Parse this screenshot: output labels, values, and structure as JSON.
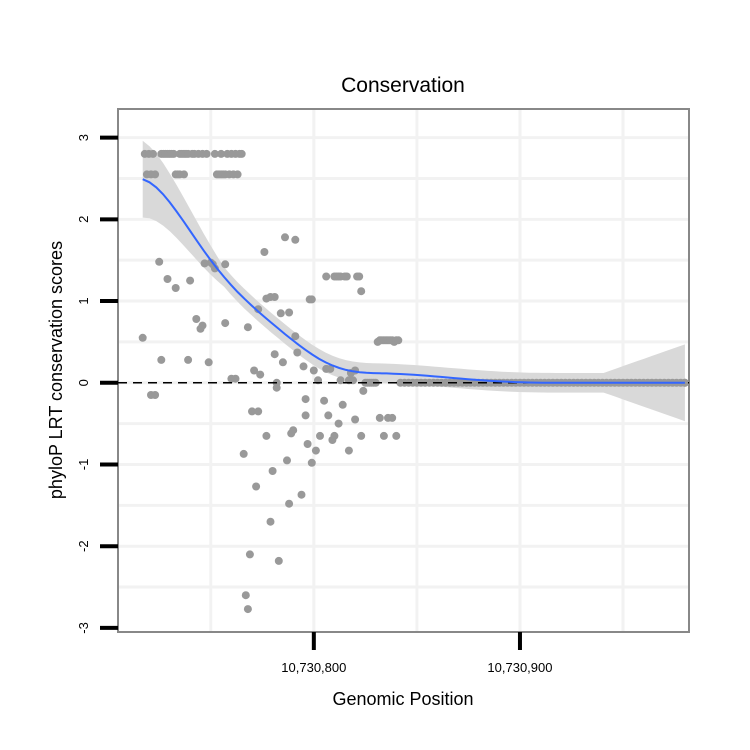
{
  "chart_data": {
    "type": "scatter",
    "title": "Conservation",
    "xlabel": "Genomic Position",
    "ylabel": "phyloP LRT conservation scores",
    "xlim": [
      10730705,
      10730982
    ],
    "ylim": [
      -3.05,
      3.35
    ],
    "x_ticks": [
      {
        "value": 10730800,
        "label": "10,730,800"
      },
      {
        "value": 10730900,
        "label": "10,730,900"
      }
    ],
    "y_ticks": [
      {
        "value": 3,
        "label": "3"
      },
      {
        "value": 2,
        "label": "2"
      },
      {
        "value": 1,
        "label": "1"
      },
      {
        "value": 0,
        "label": "0"
      },
      {
        "value": -1,
        "label": "-1"
      },
      {
        "value": -2,
        "label": "-2"
      },
      {
        "value": -3,
        "label": "-3"
      }
    ],
    "reference_line": {
      "y": 0,
      "style": "dashed"
    },
    "grid": true,
    "colors": {
      "points": "#999999",
      "smooth": "#3366ff",
      "band": "#d9d9d9",
      "frame": "#888888"
    },
    "points": [
      [
        10730717,
        0.55
      ],
      [
        10730718,
        2.8
      ],
      [
        10730719,
        2.55
      ],
      [
        10730720,
        2.8
      ],
      [
        10730721,
        2.55
      ],
      [
        10730722,
        2.8
      ],
      [
        10730723,
        2.55
      ],
      [
        10730721,
        -0.15
      ],
      [
        10730723,
        -0.15
      ],
      [
        10730725,
        1.48
      ],
      [
        10730726,
        0.28
      ],
      [
        10730726,
        2.8
      ],
      [
        10730727,
        2.8
      ],
      [
        10730728,
        2.8
      ],
      [
        10730729,
        1.27
      ],
      [
        10730729,
        2.8
      ],
      [
        10730730,
        2.8
      ],
      [
        10730731,
        2.8
      ],
      [
        10730732,
        2.8
      ],
      [
        10730733,
        1.16
      ],
      [
        10730733,
        2.55
      ],
      [
        10730734,
        2.55
      ],
      [
        10730735,
        2.55
      ],
      [
        10730735,
        2.8
      ],
      [
        10730736,
        2.8
      ],
      [
        10730737,
        2.55
      ],
      [
        10730737,
        2.8
      ],
      [
        10730738,
        2.8
      ],
      [
        10730739,
        2.8
      ],
      [
        10730739,
        0.28
      ],
      [
        10730740,
        1.25
      ],
      [
        10730741,
        2.8
      ],
      [
        10730742,
        2.8
      ],
      [
        10730743,
        0.78
      ],
      [
        10730744,
        2.8
      ],
      [
        10730745,
        0.66
      ],
      [
        10730746,
        2.8
      ],
      [
        10730746,
        0.7
      ],
      [
        10730747,
        1.46
      ],
      [
        10730748,
        2.8
      ],
      [
        10730749,
        0.25
      ],
      [
        10730750,
        1.47
      ],
      [
        10730751,
        1.45
      ],
      [
        10730752,
        2.8
      ],
      [
        10730752,
        1.4
      ],
      [
        10730753,
        2.55
      ],
      [
        10730754,
        2.55
      ],
      [
        10730755,
        2.8
      ],
      [
        10730755,
        2.55
      ],
      [
        10730756,
        2.55
      ],
      [
        10730757,
        2.55
      ],
      [
        10730757,
        1.45
      ],
      [
        10730757,
        0.73
      ],
      [
        10730758,
        2.8
      ],
      [
        10730759,
        2.55
      ],
      [
        10730760,
        0.05
      ],
      [
        10730760,
        2.8
      ],
      [
        10730761,
        2.55
      ],
      [
        10730762,
        2.8
      ],
      [
        10730762,
        0.05
      ],
      [
        10730763,
        2.55
      ],
      [
        10730764,
        2.8
      ],
      [
        10730765,
        2.8
      ],
      [
        10730766,
        -0.87
      ],
      [
        10730767,
        -2.6
      ],
      [
        10730768,
        -2.77
      ],
      [
        10730768,
        0.68
      ],
      [
        10730769,
        -2.1
      ],
      [
        10730770,
        -0.35
      ],
      [
        10730771,
        0.15
      ],
      [
        10730772,
        -1.27
      ],
      [
        10730773,
        -0.35
      ],
      [
        10730773,
        0.9
      ],
      [
        10730774,
        0.1
      ],
      [
        10730776,
        1.6
      ],
      [
        10730777,
        -0.65
      ],
      [
        10730777,
        1.03
      ],
      [
        10730779,
        -1.7
      ],
      [
        10730779,
        1.05
      ],
      [
        10730780,
        -1.08
      ],
      [
        10730781,
        0.35
      ],
      [
        10730781,
        1.05
      ],
      [
        10730782,
        0.0
      ],
      [
        10730782,
        -0.06
      ],
      [
        10730783,
        -2.18
      ],
      [
        10730784,
        0.85
      ],
      [
        10730785,
        0.25
      ],
      [
        10730786,
        1.78
      ],
      [
        10730787,
        -0.95
      ],
      [
        10730788,
        -1.48
      ],
      [
        10730788,
        0.86
      ],
      [
        10730789,
        -0.62
      ],
      [
        10730790,
        -0.58
      ],
      [
        10730791,
        1.75
      ],
      [
        10730791,
        0.57
      ],
      [
        10730792,
        0.37
      ],
      [
        10730794,
        -1.37
      ],
      [
        10730795,
        0.2
      ],
      [
        10730796,
        -0.2
      ],
      [
        10730796,
        -0.4
      ],
      [
        10730797,
        -0.75
      ],
      [
        10730798,
        1.02
      ],
      [
        10730799,
        1.02
      ],
      [
        10730799,
        -0.98
      ],
      [
        10730800,
        0.15
      ],
      [
        10730801,
        -0.83
      ],
      [
        10730802,
        0.03
      ],
      [
        10730803,
        -0.65
      ],
      [
        10730805,
        -0.22
      ],
      [
        10730806,
        1.3
      ],
      [
        10730806,
        0.17
      ],
      [
        10730807,
        -0.4
      ],
      [
        10730808,
        0.17
      ],
      [
        10730809,
        -0.7
      ],
      [
        10730810,
        1.3
      ],
      [
        10730810,
        -0.65
      ],
      [
        10730811,
        1.3
      ],
      [
        10730812,
        1.3
      ],
      [
        10730812,
        -0.5
      ],
      [
        10730813,
        1.3
      ],
      [
        10730813,
        0.03
      ],
      [
        10730814,
        -0.27
      ],
      [
        10730815,
        1.3
      ],
      [
        10730816,
        1.3
      ],
      [
        10730817,
        0.03
      ],
      [
        10730817,
        -0.83
      ],
      [
        10730818,
        0.12
      ],
      [
        10730819,
        0.03
      ],
      [
        10730820,
        0.15
      ],
      [
        10730820,
        -0.45
      ],
      [
        10730821,
        1.3
      ],
      [
        10730822,
        1.3
      ],
      [
        10730823,
        1.12
      ],
      [
        10730823,
        -0.65
      ],
      [
        10730824,
        -0.1
      ],
      [
        10730825,
        0.0
      ],
      [
        10730826,
        0.0
      ],
      [
        10730827,
        0.0
      ],
      [
        10730828,
        0.0
      ],
      [
        10730829,
        0.0
      ],
      [
        10730830,
        0.0
      ],
      [
        10730831,
        0.5
      ],
      [
        10730832,
        0.52
      ],
      [
        10730832,
        -0.43
      ],
      [
        10730833,
        0.52
      ],
      [
        10730834,
        0.52
      ],
      [
        10730834,
        -0.65
      ],
      [
        10730835,
        0.52
      ],
      [
        10730836,
        0.52
      ],
      [
        10730836,
        -0.43
      ],
      [
        10730837,
        0.52
      ],
      [
        10730838,
        0.52
      ],
      [
        10730838,
        -0.43
      ],
      [
        10730839,
        0.5
      ],
      [
        10730840,
        0.52
      ],
      [
        10730840,
        -0.65
      ],
      [
        10730841,
        0.52
      ],
      [
        10730842,
        0.0
      ],
      [
        10730844,
        0.0
      ],
      [
        10730846,
        0.0
      ],
      [
        10730848,
        0.0
      ],
      [
        10730850,
        0.0
      ],
      [
        10730852,
        0.0
      ],
      [
        10730854,
        0.0
      ],
      [
        10730856,
        0.0
      ],
      [
        10730858,
        0.0
      ],
      [
        10730860,
        0.0
      ],
      [
        10730862,
        0.0
      ],
      [
        10730864,
        0.0
      ],
      [
        10730866,
        0.0
      ],
      [
        10730868,
        0.0
      ],
      [
        10730870,
        0.0
      ],
      [
        10730872,
        0.0
      ],
      [
        10730874,
        0.0
      ],
      [
        10730876,
        0.0
      ],
      [
        10730878,
        0.0
      ],
      [
        10730880,
        0.0
      ],
      [
        10730882,
        0.0
      ],
      [
        10730884,
        0.0
      ],
      [
        10730886,
        0.0
      ],
      [
        10730888,
        0.0
      ],
      [
        10730890,
        0.0
      ],
      [
        10730892,
        0.0
      ],
      [
        10730894,
        0.0
      ],
      [
        10730896,
        0.0
      ],
      [
        10730898,
        0.0
      ],
      [
        10730900,
        0.0
      ],
      [
        10730902,
        0.0
      ],
      [
        10730904,
        0.0
      ],
      [
        10730906,
        0.0
      ],
      [
        10730908,
        0.0
      ],
      [
        10730910,
        0.0
      ],
      [
        10730912,
        0.0
      ],
      [
        10730914,
        0.0
      ],
      [
        10730916,
        0.0
      ],
      [
        10730918,
        0.0
      ],
      [
        10730920,
        0.0
      ],
      [
        10730922,
        0.0
      ],
      [
        10730924,
        0.0
      ],
      [
        10730926,
        0.0
      ],
      [
        10730928,
        0.0
      ],
      [
        10730930,
        0.0
      ],
      [
        10730932,
        0.0
      ],
      [
        10730934,
        0.0
      ],
      [
        10730936,
        0.0
      ],
      [
        10730938,
        0.0
      ],
      [
        10730940,
        0.0
      ],
      [
        10730942,
        0.0
      ],
      [
        10730944,
        0.0
      ],
      [
        10730946,
        0.0
      ],
      [
        10730948,
        0.0
      ],
      [
        10730950,
        0.0
      ],
      [
        10730952,
        0.0
      ],
      [
        10730954,
        0.0
      ],
      [
        10730956,
        0.0
      ],
      [
        10730958,
        0.0
      ],
      [
        10730960,
        0.0
      ],
      [
        10730962,
        0.0
      ],
      [
        10730964,
        0.0
      ],
      [
        10730966,
        0.0
      ],
      [
        10730968,
        0.0
      ],
      [
        10730970,
        0.0
      ],
      [
        10730972,
        0.0
      ],
      [
        10730974,
        0.0
      ],
      [
        10730976,
        0.0
      ],
      [
        10730978,
        0.0
      ],
      [
        10730980,
        0.0
      ],
      [
        10730980,
        0.0
      ]
    ]
  }
}
